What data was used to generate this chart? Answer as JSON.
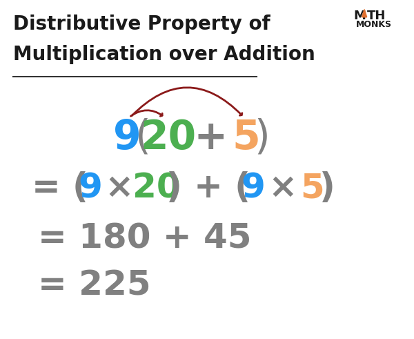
{
  "title_line1": "Distributive Property of",
  "title_line2": "Multiplication over Addition",
  "bg_color": "#ffffff",
  "title_color": "#1a1a1a",
  "title_fontsize": 20,
  "color_blue": "#2196F3",
  "color_green": "#4CAF50",
  "color_orange": "#F4A460",
  "color_gray": "#808080",
  "color_dark_red": "#8B1A1A",
  "math_monks_color": "#1a1a1a",
  "triangle_color": "#E07030",
  "line3": "= 180 + 45",
  "line4": "= 225",
  "line3_color": "#808080",
  "line4_color": "#808080",
  "line3_size": 36,
  "line4_size": 36,
  "arrow_color": "#8B1A1A"
}
